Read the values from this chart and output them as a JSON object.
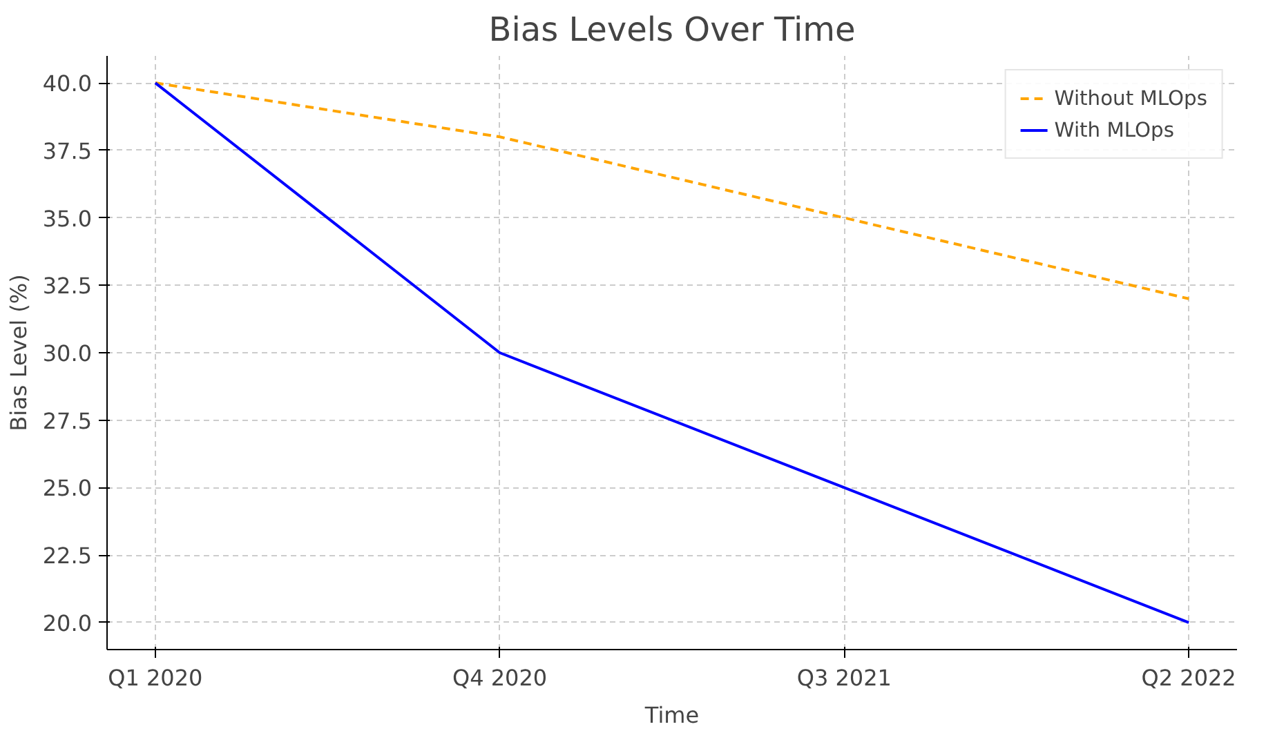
{
  "chart_data": {
    "type": "line",
    "title": "Bias Levels Over Time",
    "xlabel": "Time",
    "ylabel": "Bias Level (%)",
    "categories": [
      "Q1 2020",
      "Q4 2020",
      "Q3 2021",
      "Q2 2022"
    ],
    "series": [
      {
        "name": "Without MLOps",
        "color": "#ffa500",
        "values": [
          40,
          38,
          35,
          32
        ],
        "line_style": "dashed"
      },
      {
        "name": "With MLOps",
        "color": "#0000ff",
        "values": [
          40,
          30,
          25,
          20
        ],
        "line_style": "solid"
      }
    ],
    "ylim": [
      19,
      41
    ],
    "yticks": [
      {
        "value": 20,
        "label": "20.0"
      },
      {
        "value": 22.5,
        "label": "22.5"
      },
      {
        "value": 25,
        "label": "25.0"
      },
      {
        "value": 27.5,
        "label": "27.5"
      },
      {
        "value": 30,
        "label": "30.0"
      },
      {
        "value": 32.5,
        "label": "32.5"
      },
      {
        "value": 35,
        "label": "35.0"
      },
      {
        "value": 37.5,
        "label": "37.5"
      },
      {
        "value": 40,
        "label": "40.0"
      }
    ],
    "grid": true,
    "legend": "top right",
    "marker": "none"
  }
}
